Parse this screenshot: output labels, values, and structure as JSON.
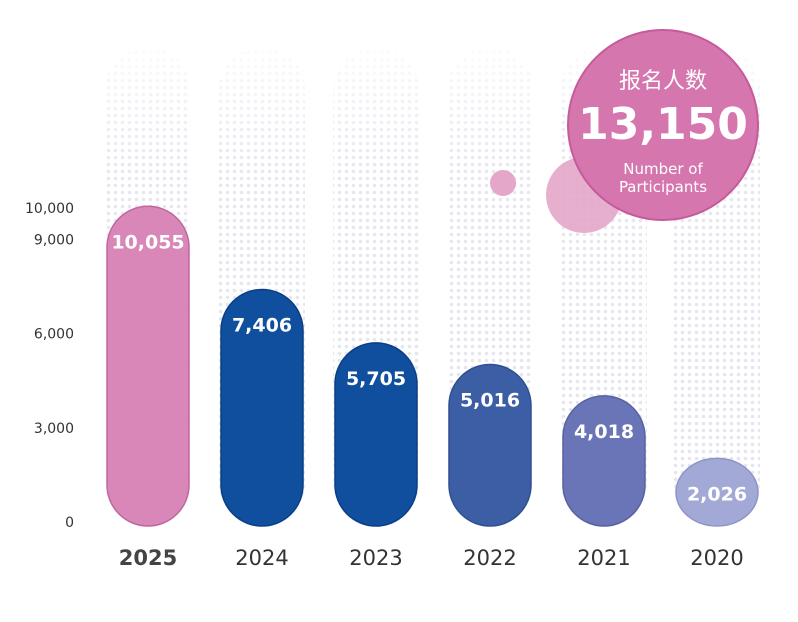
{
  "chart_data": {
    "type": "bar",
    "categories": [
      "2025",
      "2024",
      "2023",
      "2022",
      "2021",
      "2020"
    ],
    "values": [
      10055,
      7406,
      5705,
      5016,
      4018,
      2026
    ],
    "value_labels": [
      "10,055",
      "7,406",
      "5,705",
      "5,016",
      "4,018",
      "2,026"
    ],
    "highlight_category": "2025",
    "y_ticks": [
      {
        "value": 0,
        "label": "0"
      },
      {
        "value": 3000,
        "label": "3,000"
      },
      {
        "value": 6000,
        "label": "6,000"
      },
      {
        "value": 9000,
        "label": "9,000"
      },
      {
        "value": 10000,
        "label": "10,000"
      }
    ],
    "ylim": [
      0,
      10500
    ],
    "grid": false,
    "bar_style": "rounded-pill",
    "colors": [
      "#d986b8",
      "#0f4f9e",
      "#0f4f9e",
      "#3c5ea5",
      "#6975b6",
      "#a2a9d6"
    ],
    "bar_stroke": [
      "#c0679f",
      "#0a3f85",
      "#0a3f85",
      "#304f92",
      "#5862a2",
      "#8e95c7"
    ]
  },
  "badge": {
    "title": "报名人数",
    "value": "13,150",
    "subtitle_line1": "Number of",
    "subtitle_line2": "Participants",
    "color": "#d676ae",
    "stroke": "#c65a9a"
  },
  "decor_color": "#e4a6c9"
}
